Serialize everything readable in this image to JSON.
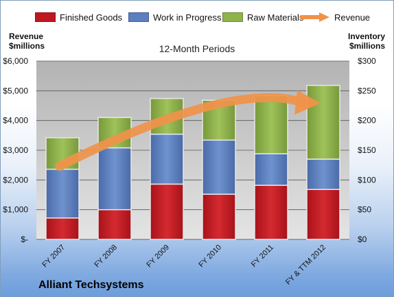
{
  "chart_data": {
    "type": "bar",
    "stacked": true,
    "title": "12-Month Periods",
    "company": "Alliant Techsystems",
    "categories": [
      "FY 2007",
      "FY 2008",
      "FY 2009",
      "FY 2010",
      "FY 2011",
      "FY & TTM 2012"
    ],
    "series": [
      {
        "name": "Finished Goods",
        "color": "#c0171f",
        "values": [
          36,
          50,
          93,
          76,
          91,
          84
        ]
      },
      {
        "name": "Work in Progress",
        "color": "#5b7fbf",
        "values": [
          82,
          104,
          84,
          91,
          53,
          51
        ]
      },
      {
        "name": "Raw Materials",
        "color": "#8fb449",
        "values": [
          53,
          51,
          60,
          67,
          98,
          124
        ]
      }
    ],
    "line": {
      "name": "Revenue",
      "color": "#f0924a",
      "shape": "curved-arrow"
    },
    "left_axis": {
      "label": "Revenue $millions",
      "range": [
        0,
        6000
      ],
      "ticks": [
        "$-",
        "$1,000",
        "$2,000",
        "$3,000",
        "$4,000",
        "$5,000",
        "$6,000"
      ]
    },
    "right_axis": {
      "label": "Inventory $millions",
      "range": [
        0,
        300
      ],
      "ticks": [
        "$0",
        "$50",
        "$100",
        "$150",
        "$200",
        "$250",
        "$300"
      ]
    },
    "grid": true,
    "legend_position": "top"
  }
}
